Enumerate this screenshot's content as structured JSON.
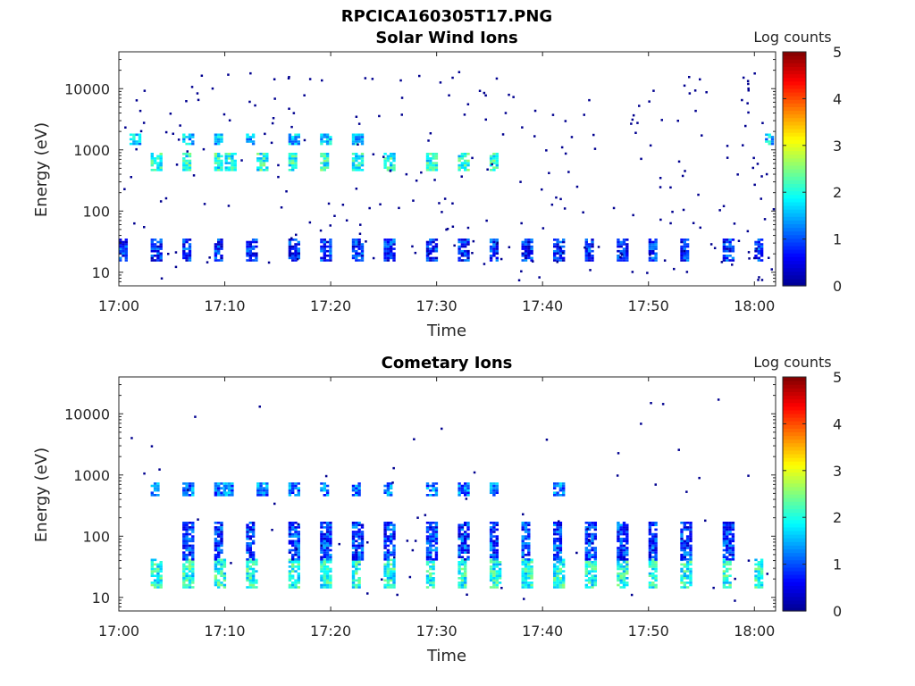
{
  "figure_title": "RPCICA160305T17.PNG",
  "colors": {
    "colormap": [
      "#00008f",
      "#0000ff",
      "#0080ff",
      "#00ffff",
      "#80ff80",
      "#ffff00",
      "#ff8000",
      "#ff0000",
      "#800000"
    ],
    "axis": "#262626",
    "background": "#ffffff"
  },
  "chart_data": [
    {
      "type": "heatmap",
      "title": "Solar Wind Ions",
      "xlabel": "Time",
      "ylabel": "Energy (eV)",
      "xlim": [
        "17:00",
        "18:02"
      ],
      "x_ticks": [
        "17:00",
        "17:10",
        "17:20",
        "17:30",
        "17:40",
        "17:50",
        "18:00"
      ],
      "ylim": [
        6,
        40000
      ],
      "y_scale": "log",
      "y_ticks": [
        "10",
        "100",
        "1000",
        "10000"
      ],
      "y_tick_values": [
        10,
        100,
        1000,
        10000
      ],
      "colorbar": {
        "label": "Log counts",
        "range": [
          0,
          5
        ],
        "ticks": [
          "0",
          "1",
          "2",
          "3",
          "4",
          "5"
        ]
      },
      "bands": [
        {
          "energy_eV": [
            450,
            850
          ],
          "level": 2.0,
          "times": [
            "17:03",
            "17:06",
            "17:09",
            "17:10",
            "17:13",
            "17:16",
            "17:19",
            "17:22",
            "17:25",
            "17:29",
            "17:32",
            "17:35"
          ]
        },
        {
          "energy_eV": [
            1200,
            1700
          ],
          "level": 1.6,
          "times": [
            "17:01",
            "17:06",
            "17:09",
            "17:12",
            "17:16",
            "17:19",
            "17:22",
            "18:01"
          ]
        },
        {
          "energy_eV": [
            15,
            35
          ],
          "level": 0.8,
          "times": [
            "17:00",
            "17:03",
            "17:06",
            "17:09",
            "17:12",
            "17:16",
            "17:19",
            "17:22",
            "17:25",
            "17:29",
            "17:32",
            "17:35",
            "17:38",
            "17:41",
            "17:44",
            "17:47",
            "17:50",
            "17:53",
            "17:57",
            "18:00"
          ]
        }
      ]
    },
    {
      "type": "heatmap",
      "title": "Cometary Ions",
      "xlabel": "Time",
      "ylabel": "Energy (eV)",
      "xlim": [
        "17:00",
        "18:02"
      ],
      "x_ticks": [
        "17:00",
        "17:10",
        "17:20",
        "17:30",
        "17:40",
        "17:50",
        "18:00"
      ],
      "ylim": [
        6,
        40000
      ],
      "y_scale": "log",
      "y_ticks": [
        "10",
        "100",
        "1000",
        "10000"
      ],
      "y_tick_values": [
        10,
        100,
        1000,
        10000
      ],
      "colorbar": {
        "label": "Log counts",
        "range": [
          0,
          5
        ],
        "ticks": [
          "0",
          "1",
          "2",
          "3",
          "4",
          "5"
        ]
      },
      "bands": [
        {
          "energy_eV": [
            450,
            700
          ],
          "level": 1.2,
          "times": [
            "17:03",
            "17:06",
            "17:09",
            "17:10",
            "17:13",
            "17:16",
            "17:19",
            "17:22",
            "17:25",
            "17:29",
            "17:32",
            "17:35",
            "17:41"
          ]
        },
        {
          "energy_eV": [
            14,
            40
          ],
          "level": 2.0,
          "times": [
            "17:03",
            "17:06",
            "17:09",
            "17:12",
            "17:16",
            "17:19",
            "17:22",
            "17:25",
            "17:29",
            "17:32",
            "17:35",
            "17:38",
            "17:41",
            "17:44",
            "17:47",
            "17:50",
            "17:53",
            "17:57",
            "18:00"
          ]
        },
        {
          "energy_eV": [
            40,
            160
          ],
          "level": 0.9,
          "times": [
            "17:06",
            "17:09",
            "17:12",
            "17:16",
            "17:19",
            "17:22",
            "17:25",
            "17:29",
            "17:32",
            "17:35",
            "17:38",
            "17:41",
            "17:44",
            "17:47",
            "17:50",
            "17:53",
            "17:57"
          ]
        }
      ]
    }
  ]
}
